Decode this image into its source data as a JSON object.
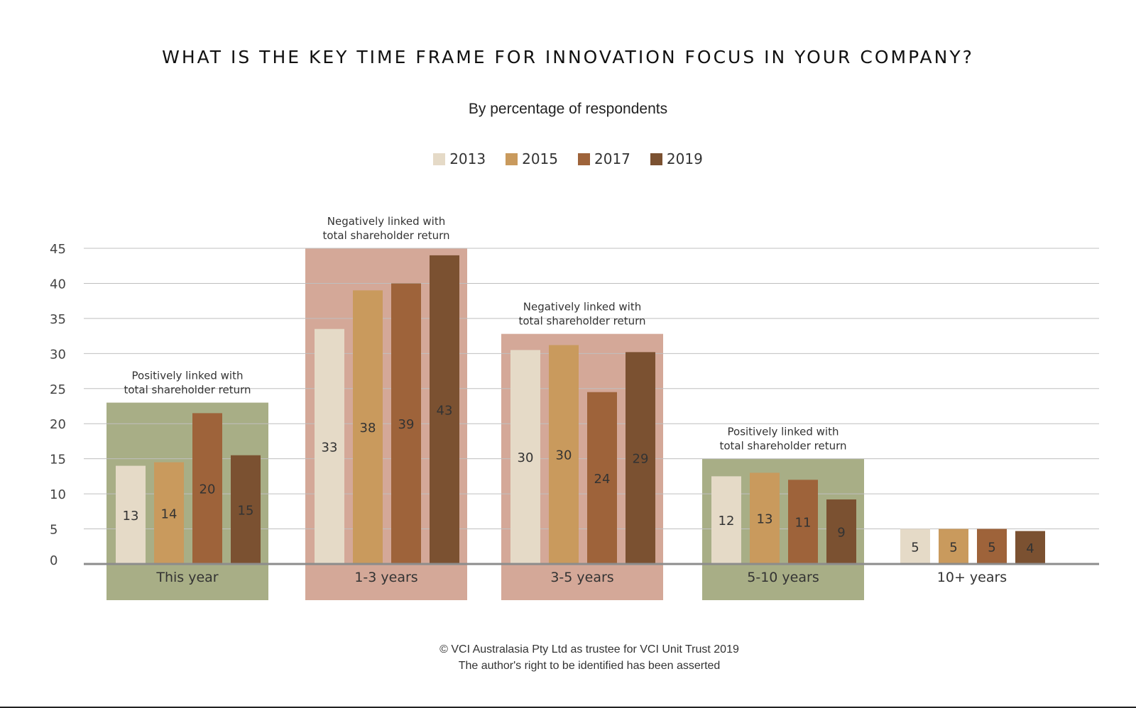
{
  "title": "WHAT IS THE KEY TIME FRAME FOR INNOVATION FOCUS IN YOUR COMPANY?",
  "subtitle": "By percentage of respondents",
  "footer": {
    "line1": "© VCI Australasia Pty Ltd as trustee for VCI Unit Trust 2019",
    "line2": "The author's right to be identified has been asserted"
  },
  "colors": {
    "2013": "#e5dac7",
    "2015": "#c99a5d",
    "2017": "#9e633a",
    "2019": "#7b5131",
    "positive_bg": "#a8ae86",
    "negative_bg": "#d4a898",
    "grid": "#bfbfbf",
    "axis": "#8c8c8c"
  },
  "chart_data": {
    "type": "bar",
    "title": "WHAT IS THE KEY TIME FRAME FOR INNOVATION FOCUS IN YOUR COMPANY?",
    "ylabel": "",
    "xlabel": "",
    "ylim": [
      0,
      45
    ],
    "yticks": [
      0,
      5,
      10,
      15,
      20,
      25,
      30,
      35,
      40,
      45
    ],
    "grid": true,
    "legend": "top-center",
    "categories": [
      "This year",
      "1-3 years",
      "3-5 years",
      "5-10 years",
      "10+ years"
    ],
    "series": [
      {
        "name": "2013",
        "values": [
          13,
          33,
          30,
          12,
          5
        ],
        "heights": [
          14,
          33.5,
          30.5,
          12.5,
          5
        ]
      },
      {
        "name": "2015",
        "values": [
          14,
          38,
          30,
          13,
          5
        ],
        "heights": [
          14.5,
          39,
          31.2,
          13,
          5
        ]
      },
      {
        "name": "2017",
        "values": [
          20,
          39,
          24,
          11,
          5
        ],
        "heights": [
          21.5,
          40,
          24.5,
          12,
          5
        ]
      },
      {
        "name": "2019",
        "values": [
          15,
          43,
          29,
          9,
          4
        ],
        "heights": [
          15.5,
          44,
          30.2,
          9.2,
          4.7
        ]
      }
    ],
    "group_highlights": [
      {
        "category": "This year",
        "kind": "positive",
        "annotation": [
          "Positively linked with",
          "total shareholder return"
        ],
        "level": 23
      },
      {
        "category": "1-3 years",
        "kind": "negative",
        "annotation": [
          "Negatively linked with",
          "total shareholder return"
        ],
        "level": 45
      },
      {
        "category": "3-5 years",
        "kind": "negative",
        "annotation": [
          "Negatively linked with",
          "total shareholder return"
        ],
        "level": 32.8
      },
      {
        "category": "5-10 years",
        "kind": "positive",
        "annotation": [
          "Positively linked with",
          "total shareholder return"
        ],
        "level": 15
      },
      {
        "category": "10+ years",
        "kind": "none",
        "annotation": null,
        "level": 0
      }
    ]
  }
}
